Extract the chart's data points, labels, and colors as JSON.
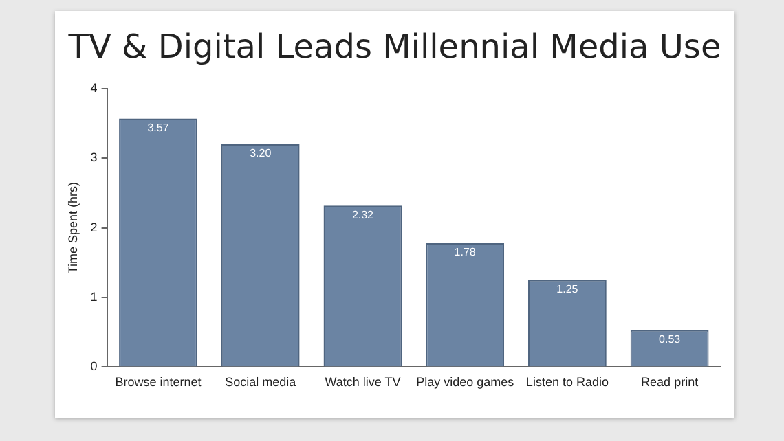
{
  "chart_data": {
    "type": "bar",
    "title": "TV & Digital Leads Millennial Media Use",
    "ylabel": "Time Spent (hrs)",
    "categories": [
      "Browse internet",
      "Social media",
      "Watch live TV",
      "Play video games",
      "Listen to Radio",
      "Read print"
    ],
    "values": [
      3.57,
      3.2,
      2.32,
      1.78,
      1.25,
      0.53
    ],
    "value_labels": [
      "3.57",
      "3.20",
      "2.32",
      "1.78",
      "1.25",
      "0.53"
    ],
    "color": "#6b84a3",
    "ylim": [
      0,
      4
    ],
    "yticks": [
      0,
      1,
      2,
      3,
      4
    ],
    "grid": false,
    "legend": false
  }
}
